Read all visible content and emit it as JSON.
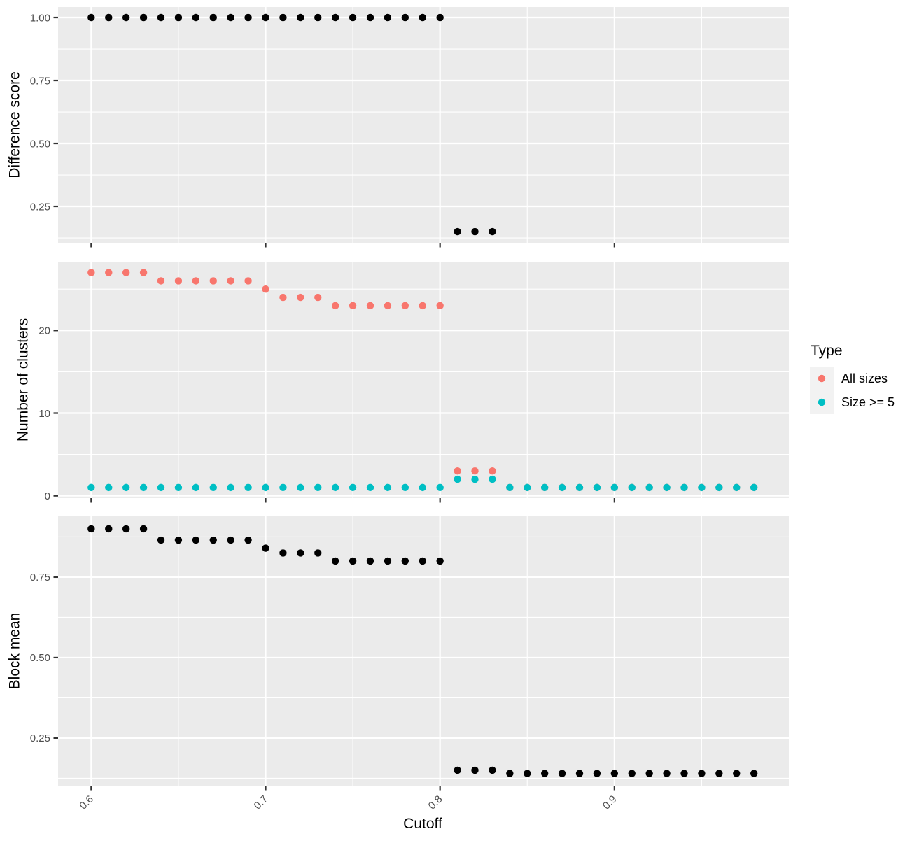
{
  "figure": {
    "xlabel": "Cutoff",
    "x_tick_labels": [
      "0.6",
      "0.7",
      "0.8",
      "0.9"
    ],
    "x_tick_values": [
      0.6,
      0.7,
      0.8,
      0.9
    ],
    "x_minor_values": [
      0.65,
      0.75,
      0.85,
      0.95
    ],
    "x_domain": [
      0.581,
      1.0
    ],
    "colors": {
      "background": "#FFFFFF",
      "panel_background": "#EBEBEB",
      "grid_major": "#FFFFFF",
      "grid_minor": "#FFFFFF",
      "tick_mark": "#333333",
      "tick_label": "#4D4D4D",
      "axis_title": "#000000"
    }
  },
  "legend": {
    "title": "Type",
    "position": "right",
    "key_background": "#F2F2F2",
    "entries": [
      {
        "label": "All sizes",
        "color": "#F8766D"
      },
      {
        "label": "Size >= 5",
        "color": "#00BFC4"
      }
    ]
  },
  "chart_data": [
    {
      "type": "scatter",
      "title": "",
      "xlabel": "Cutoff",
      "ylabel": "Difference score",
      "grid": true,
      "y_tick_labels": [
        "0.25",
        "0.50",
        "0.75",
        "1.00"
      ],
      "y_tick_values": [
        0.25,
        0.5,
        0.75,
        1.0
      ],
      "y_minor_values": [
        0.125,
        0.375,
        0.625,
        0.875
      ],
      "ylim": [
        0.1056,
        1.0417
      ],
      "series": [
        {
          "name": "Difference score",
          "color": "#000000",
          "points": [
            [
              0.6,
              1.0
            ],
            [
              0.61,
              1.0
            ],
            [
              0.62,
              1.0
            ],
            [
              0.63,
              1.0
            ],
            [
              0.64,
              1.0
            ],
            [
              0.65,
              1.0
            ],
            [
              0.66,
              1.0
            ],
            [
              0.67,
              1.0
            ],
            [
              0.68,
              1.0
            ],
            [
              0.69,
              1.0
            ],
            [
              0.7,
              1.0
            ],
            [
              0.71,
              1.0
            ],
            [
              0.72,
              1.0
            ],
            [
              0.73,
              1.0
            ],
            [
              0.74,
              1.0
            ],
            [
              0.75,
              1.0
            ],
            [
              0.76,
              1.0
            ],
            [
              0.77,
              1.0
            ],
            [
              0.78,
              1.0
            ],
            [
              0.79,
              1.0
            ],
            [
              0.8,
              1.0
            ],
            [
              0.81,
              0.15
            ],
            [
              0.82,
              0.15
            ],
            [
              0.83,
              0.15
            ]
          ]
        }
      ]
    },
    {
      "type": "scatter",
      "title": "",
      "xlabel": "Cutoff",
      "ylabel": "Number of clusters",
      "grid": true,
      "y_tick_labels": [
        "0",
        "10",
        "20"
      ],
      "y_tick_values": [
        0,
        10,
        20
      ],
      "y_minor_values": [
        5,
        15,
        25
      ],
      "ylim": [
        -0.28,
        28.32
      ],
      "series": [
        {
          "name": "All sizes",
          "color": "#F8766D",
          "points": [
            [
              0.6,
              27
            ],
            [
              0.61,
              27
            ],
            [
              0.62,
              27
            ],
            [
              0.63,
              27
            ],
            [
              0.64,
              26
            ],
            [
              0.65,
              26
            ],
            [
              0.66,
              26
            ],
            [
              0.67,
              26
            ],
            [
              0.68,
              26
            ],
            [
              0.69,
              26
            ],
            [
              0.7,
              25
            ],
            [
              0.71,
              24
            ],
            [
              0.72,
              24
            ],
            [
              0.73,
              24
            ],
            [
              0.74,
              23
            ],
            [
              0.75,
              23
            ],
            [
              0.76,
              23
            ],
            [
              0.77,
              23
            ],
            [
              0.78,
              23
            ],
            [
              0.79,
              23
            ],
            [
              0.8,
              23
            ],
            [
              0.81,
              3
            ],
            [
              0.82,
              3
            ],
            [
              0.83,
              3
            ],
            [
              0.84,
              1
            ],
            [
              0.85,
              1
            ],
            [
              0.86,
              1
            ],
            [
              0.87,
              1
            ],
            [
              0.88,
              1
            ],
            [
              0.89,
              1
            ],
            [
              0.9,
              1
            ],
            [
              0.91,
              1
            ],
            [
              0.92,
              1
            ],
            [
              0.93,
              1
            ],
            [
              0.94,
              1
            ],
            [
              0.95,
              1
            ],
            [
              0.96,
              1
            ],
            [
              0.97,
              1
            ],
            [
              0.98,
              1
            ]
          ]
        },
        {
          "name": "Size >= 5",
          "color": "#00BFC4",
          "points": [
            [
              0.6,
              1
            ],
            [
              0.61,
              1
            ],
            [
              0.62,
              1
            ],
            [
              0.63,
              1
            ],
            [
              0.64,
              1
            ],
            [
              0.65,
              1
            ],
            [
              0.66,
              1
            ],
            [
              0.67,
              1
            ],
            [
              0.68,
              1
            ],
            [
              0.69,
              1
            ],
            [
              0.7,
              1
            ],
            [
              0.71,
              1
            ],
            [
              0.72,
              1
            ],
            [
              0.73,
              1
            ],
            [
              0.74,
              1
            ],
            [
              0.75,
              1
            ],
            [
              0.76,
              1
            ],
            [
              0.77,
              1
            ],
            [
              0.78,
              1
            ],
            [
              0.79,
              1
            ],
            [
              0.8,
              1
            ],
            [
              0.81,
              2
            ],
            [
              0.82,
              2
            ],
            [
              0.83,
              2
            ],
            [
              0.84,
              1
            ],
            [
              0.85,
              1
            ],
            [
              0.86,
              1
            ],
            [
              0.87,
              1
            ],
            [
              0.88,
              1
            ],
            [
              0.89,
              1
            ],
            [
              0.9,
              1
            ],
            [
              0.91,
              1
            ],
            [
              0.92,
              1
            ],
            [
              0.93,
              1
            ],
            [
              0.94,
              1
            ],
            [
              0.95,
              1
            ],
            [
              0.96,
              1
            ],
            [
              0.97,
              1
            ],
            [
              0.98,
              1
            ]
          ]
        }
      ]
    },
    {
      "type": "scatter",
      "title": "",
      "xlabel": "Cutoff",
      "ylabel": "Block mean",
      "grid": true,
      "y_tick_labels": [
        "0.25",
        "0.50",
        "0.75"
      ],
      "y_tick_values": [
        0.25,
        0.5,
        0.75
      ],
      "y_minor_values": [
        0.125,
        0.375,
        0.625,
        0.875
      ],
      "ylim": [
        0.102,
        0.939
      ],
      "series": [
        {
          "name": "Block mean",
          "color": "#000000",
          "points": [
            [
              0.6,
              0.9
            ],
            [
              0.61,
              0.9
            ],
            [
              0.62,
              0.9
            ],
            [
              0.63,
              0.9
            ],
            [
              0.64,
              0.865
            ],
            [
              0.65,
              0.865
            ],
            [
              0.66,
              0.865
            ],
            [
              0.67,
              0.865
            ],
            [
              0.68,
              0.865
            ],
            [
              0.69,
              0.865
            ],
            [
              0.7,
              0.84
            ],
            [
              0.71,
              0.825
            ],
            [
              0.72,
              0.825
            ],
            [
              0.73,
              0.825
            ],
            [
              0.74,
              0.8
            ],
            [
              0.75,
              0.8
            ],
            [
              0.76,
              0.8
            ],
            [
              0.77,
              0.8
            ],
            [
              0.78,
              0.8
            ],
            [
              0.79,
              0.8
            ],
            [
              0.8,
              0.8
            ],
            [
              0.81,
              0.15
            ],
            [
              0.82,
              0.15
            ],
            [
              0.83,
              0.15
            ],
            [
              0.84,
              0.14
            ],
            [
              0.85,
              0.14
            ],
            [
              0.86,
              0.14
            ],
            [
              0.87,
              0.14
            ],
            [
              0.88,
              0.14
            ],
            [
              0.89,
              0.14
            ],
            [
              0.9,
              0.14
            ],
            [
              0.91,
              0.14
            ],
            [
              0.92,
              0.14
            ],
            [
              0.93,
              0.14
            ],
            [
              0.94,
              0.14
            ],
            [
              0.95,
              0.14
            ],
            [
              0.96,
              0.14
            ],
            [
              0.97,
              0.14
            ],
            [
              0.98,
              0.14
            ]
          ]
        }
      ]
    }
  ]
}
